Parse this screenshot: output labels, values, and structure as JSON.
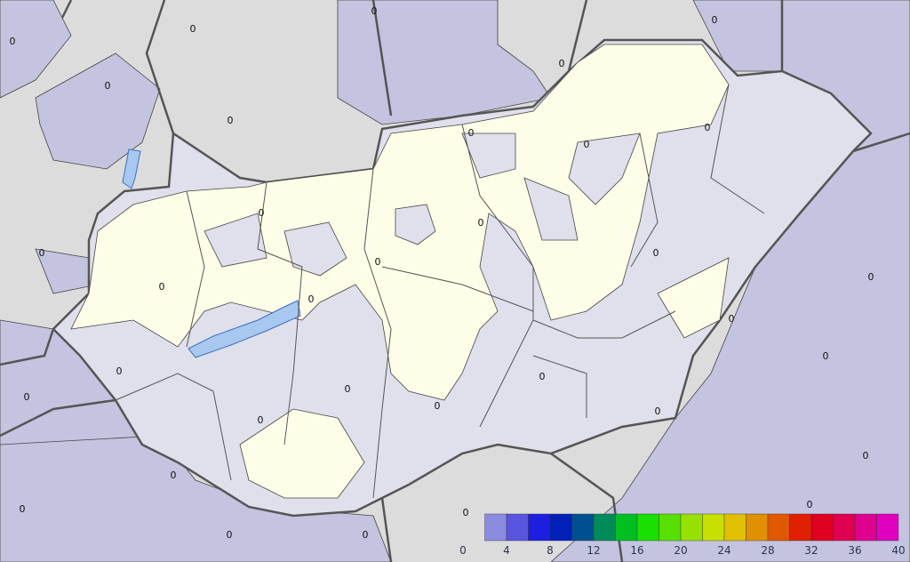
{
  "map": {
    "colors": {
      "outside_background": "#dcdcdc",
      "low_area": "#c4c4e0",
      "country_base": "#e0e0ec",
      "dry_area": "#fefee8",
      "lake": "#a8c8f0",
      "border": "#555555"
    },
    "contour_label": "0"
  },
  "legend": {
    "ticks": [
      "0",
      "4",
      "8",
      "12",
      "16",
      "20",
      "24",
      "28",
      "32",
      "36",
      "40"
    ],
    "bins": [
      {
        "from": 2,
        "to": 4,
        "color": "#8b8be0"
      },
      {
        "from": 4,
        "to": 6,
        "color": "#5a55e0"
      },
      {
        "from": 6,
        "to": 8,
        "color": "#1e1ee0"
      },
      {
        "from": 8,
        "to": 10,
        "color": "#0020b8"
      },
      {
        "from": 10,
        "to": 12,
        "color": "#005090"
      },
      {
        "from": 12,
        "to": 14,
        "color": "#008c5a"
      },
      {
        "from": 14,
        "to": 16,
        "color": "#00c020"
      },
      {
        "from": 16,
        "to": 18,
        "color": "#18e000"
      },
      {
        "from": 18,
        "to": 20,
        "color": "#58e000"
      },
      {
        "from": 20,
        "to": 22,
        "color": "#98e000"
      },
      {
        "from": 22,
        "to": 24,
        "color": "#c8e000"
      },
      {
        "from": 24,
        "to": 26,
        "color": "#e0c000"
      },
      {
        "from": 26,
        "to": 28,
        "color": "#e09000"
      },
      {
        "from": 28,
        "to": 30,
        "color": "#e05800"
      },
      {
        "from": 30,
        "to": 32,
        "color": "#e02000"
      },
      {
        "from": 32,
        "to": 34,
        "color": "#e00020"
      },
      {
        "from": 34,
        "to": 36,
        "color": "#e00050"
      },
      {
        "from": 36,
        "to": 38,
        "color": "#e00090"
      },
      {
        "from": 38,
        "to": 40,
        "color": "#e000c0"
      }
    ]
  }
}
